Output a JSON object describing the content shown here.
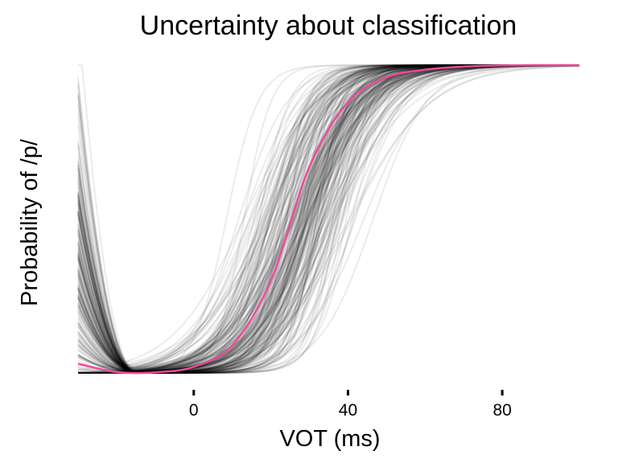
{
  "chart_data": {
    "type": "line",
    "title": "Uncertainty about classification",
    "xlabel": "VOT (ms)",
    "ylabel": "Probability of /p/",
    "x_ticks": [
      0,
      40,
      80
    ],
    "xlim": [
      -30,
      100
    ],
    "ylim": [
      0,
      1
    ],
    "y_ticks_shown": false,
    "grid": false,
    "legend": "none",
    "sample_curve_count": 220,
    "series": [
      {
        "x": [
          -30,
          -20,
          -10,
          0,
          10,
          20,
          30,
          40,
          50,
          60,
          70,
          80,
          90,
          100
        ],
        "y": [
          0.03,
          0.003,
          0.002,
          0.02,
          0.09,
          0.3,
          0.67,
          0.88,
          0.96,
          0.985,
          0.995,
          0.999,
          1.0,
          1.0
        ],
        "color": "#ee4a9c"
      }
    ],
    "colors": {
      "mean_curve": "#ee4a9c",
      "sample_curves": "#000000"
    }
  }
}
